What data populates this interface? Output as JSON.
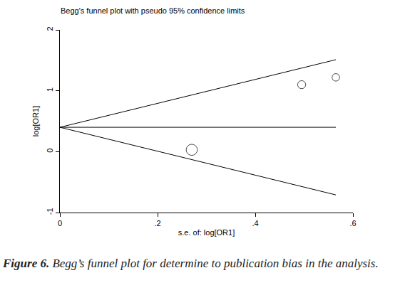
{
  "chart_data": {
    "type": "scatter",
    "title": "Begg's funnel plot with pseudo 95% confidence limits",
    "x_label": "s.e. of: log[OR1]",
    "y_label": "log[OR1]",
    "x": [
      0.27,
      0.495,
      0.565
    ],
    "values": [
      0.03,
      1.1,
      1.22
    ],
    "sizes": [
      13.7,
      4.1,
      3.1
    ],
    "marker": "circle-open",
    "color": "#000000",
    "lines": [
      {
        "x": [
          0,
          0.565
        ],
        "values": [
          0.4,
          0.4
        ]
      },
      {
        "x": [
          0,
          0.565
        ],
        "values": [
          0.4,
          1.51
        ]
      },
      {
        "x": [
          0,
          0.565
        ],
        "values": [
          0.4,
          -0.71
        ]
      }
    ],
    "xlim": [
      0,
      0.6
    ],
    "ylim": [
      -1,
      2
    ],
    "xticks": [
      0,
      {
        "value": 0.2,
        "label": ".2"
      },
      {
        "value": 0.4,
        "label": ".4"
      },
      {
        "value": 0.6,
        "label": ".6"
      }
    ],
    "yticks": [
      -1,
      0,
      1,
      2
    ],
    "grid": false,
    "caption": {
      "label": "Figure 6.",
      "text": "Begg’s funnel plot for determine to publication bias in the analysis."
    }
  }
}
